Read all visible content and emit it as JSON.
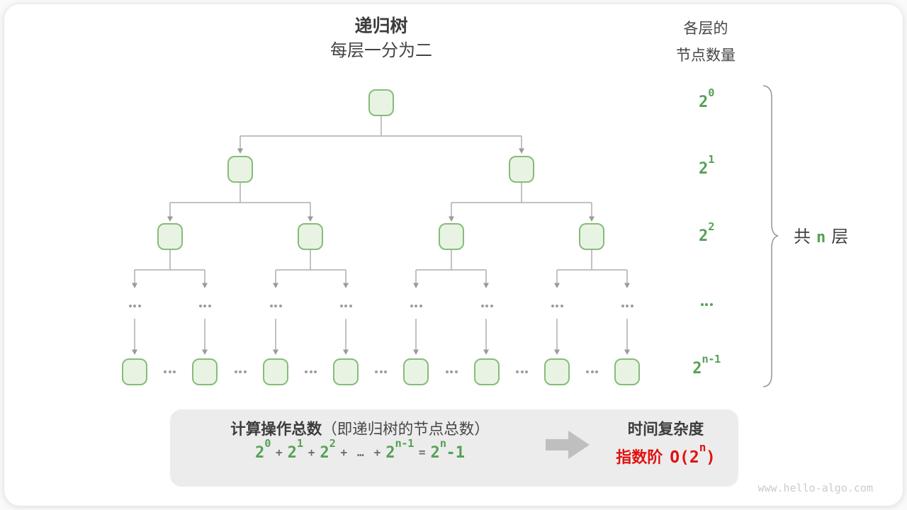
{
  "title": {
    "main": "递归树",
    "sub": "每层一分为二"
  },
  "right_header": {
    "line1": "各层的",
    "line2": "节点数量"
  },
  "tree": {
    "layers": [
      {
        "kind": "nodes",
        "count": 1,
        "label": {
          "base": "2",
          "sup": "0"
        }
      },
      {
        "kind": "nodes",
        "count": 2,
        "label": {
          "base": "2",
          "sup": "1"
        }
      },
      {
        "kind": "nodes",
        "count": 4,
        "label": {
          "base": "2",
          "sup": "2"
        }
      },
      {
        "kind": "dots",
        "count": 8,
        "label": {
          "dots": true
        }
      },
      {
        "kind": "nodes",
        "count": 8,
        "gap_dots": true,
        "label": {
          "base": "2",
          "sup": "n-1"
        }
      }
    ]
  },
  "brace": {
    "label": [
      {
        "t": "共",
        "cls": "cjk"
      },
      {
        "t": "n",
        "cls": "green-mono"
      },
      {
        "t": "层",
        "cls": "cjk"
      }
    ]
  },
  "summary": {
    "left_title": [
      {
        "t": "计算操作总数",
        "cls": "bold"
      },
      {
        "t": "（即递归树的节点总数）",
        "cls": "normal"
      }
    ],
    "formula": [
      {
        "t": "2",
        "sup": "0",
        "cls": "term"
      },
      {
        "t": "+",
        "cls": "op"
      },
      {
        "t": "2",
        "sup": "1",
        "cls": "term"
      },
      {
        "t": "+",
        "cls": "op"
      },
      {
        "t": "2",
        "sup": "2",
        "cls": "term"
      },
      {
        "t": "+",
        "cls": "op"
      },
      {
        "t": "…",
        "cls": "op"
      },
      {
        "t": "+",
        "cls": "op"
      },
      {
        "t": "2",
        "sup": "n-1",
        "cls": "term"
      },
      {
        "t": "=",
        "cls": "op"
      },
      {
        "t": "2",
        "sup": "n",
        "cls": "term"
      },
      {
        "t": "-1",
        "cls": "term"
      }
    ],
    "right_title": "时间复杂度",
    "right_value": [
      {
        "t": "指数阶",
        "cls": "red-cjk"
      },
      {
        "t": "O(2",
        "sup": "n",
        "cls": "red-mono"
      },
      {
        "t": ")",
        "cls": "red-mono"
      }
    ]
  },
  "page": {
    "watermark": "www.hello-algo.com"
  },
  "colors": {
    "green_text": "#56a156",
    "node_border": "#85bd77",
    "node_fill": "#e9f3e4",
    "connector_gray": "#aeaeae",
    "summary_bg": "#ececec",
    "red_accent": "#e01212"
  }
}
